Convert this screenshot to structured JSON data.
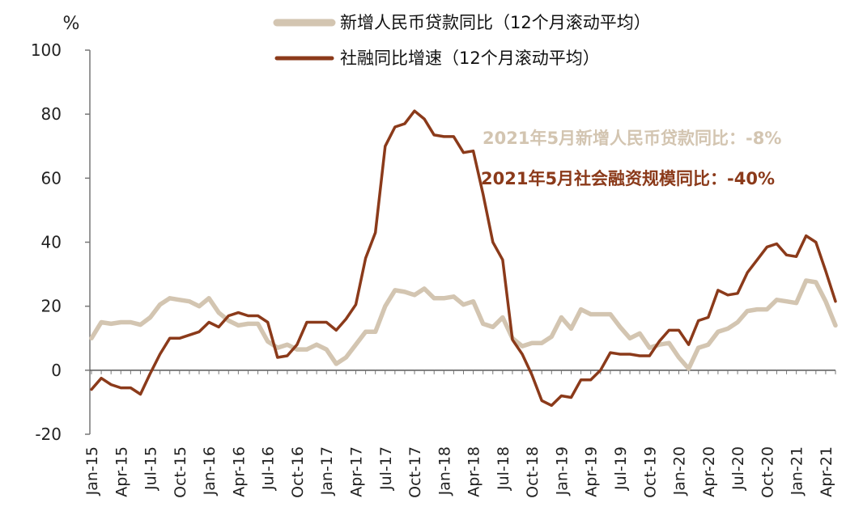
{
  "chart_data": {
    "type": "line",
    "unit_label": "%",
    "ylim": [
      -20,
      100
    ],
    "yticks": [
      "100",
      "80",
      "60",
      "40",
      "20",
      "0",
      "-20"
    ],
    "xtick_labels": [
      "Jan-15",
      "Apr-15",
      "Jul-15",
      "Oct-15",
      "Jan-16",
      "Apr-16",
      "Jul-16",
      "Oct-16",
      "Jan-17",
      "Apr-17",
      "Jul-17",
      "Oct-17",
      "Jan-18",
      "Apr-18",
      "Jul-18",
      "Oct-18",
      "Jan-19",
      "Apr-19",
      "Jul-19",
      "Oct-19",
      "Jan-20",
      "Apr-20",
      "Jul-20",
      "Oct-20",
      "Jan-21",
      "Apr-21"
    ],
    "x": [
      "Jan-15",
      "Feb-15",
      "Mar-15",
      "Apr-15",
      "May-15",
      "Jun-15",
      "Jul-15",
      "Aug-15",
      "Sep-15",
      "Oct-15",
      "Nov-15",
      "Dec-15",
      "Jan-16",
      "Feb-16",
      "Mar-16",
      "Apr-16",
      "May-16",
      "Jun-16",
      "Jul-16",
      "Aug-16",
      "Sep-16",
      "Oct-16",
      "Nov-16",
      "Dec-16",
      "Jan-17",
      "Feb-17",
      "Mar-17",
      "Apr-17",
      "May-17",
      "Jun-17",
      "Jul-17",
      "Aug-17",
      "Sep-17",
      "Oct-17",
      "Nov-17",
      "Dec-17",
      "Jan-18",
      "Feb-18",
      "Mar-18",
      "Apr-18",
      "May-18",
      "Jun-18",
      "Jul-18",
      "Aug-18",
      "Sep-18",
      "Oct-18",
      "Nov-18",
      "Dec-18",
      "Jan-19",
      "Feb-19",
      "Mar-19",
      "Apr-19",
      "May-19",
      "Jun-19",
      "Jul-19",
      "Aug-19",
      "Sep-19",
      "Oct-19",
      "Nov-19",
      "Dec-19",
      "Jan-20",
      "Feb-20",
      "Mar-20",
      "Apr-20",
      "May-20",
      "Jun-20",
      "Jul-20",
      "Aug-20",
      "Sep-20",
      "Oct-20",
      "Nov-20",
      "Dec-20",
      "Jan-21",
      "Feb-21",
      "Mar-21",
      "Apr-21",
      "May-21"
    ],
    "series": [
      {
        "name": "新增人民币贷款同比（12个月滚动平均）",
        "color": "#d3c5b1",
        "values": [
          10,
          15,
          14.5,
          15,
          15,
          14.2,
          16.5,
          20.5,
          22.5,
          22,
          21.5,
          20,
          22.5,
          18,
          15.5,
          14,
          14.5,
          14.5,
          9,
          7,
          8,
          6.5,
          6.5,
          8,
          6.5,
          2,
          4,
          8,
          12,
          12,
          20,
          25,
          24.5,
          23.5,
          25.5,
          22.5,
          22.5,
          23,
          20.5,
          21.5,
          14.5,
          13.5,
          16.5,
          10,
          7.5,
          8.5,
          8.5,
          10.5,
          16.5,
          13,
          19,
          17.5,
          17.5,
          17.5,
          13.5,
          10,
          11.5,
          7,
          8,
          8.5,
          4,
          0.5,
          7,
          8,
          12,
          13,
          15,
          18.5,
          19,
          19,
          22,
          21.5,
          21,
          28,
          27.5,
          21.5,
          14
        ]
      },
      {
        "name": "社融同比增速（12个月滚动平均）",
        "color": "#8b3a1a",
        "values": [
          -6,
          -2.5,
          -4.5,
          -5.5,
          -5.5,
          -7.5,
          -1,
          5,
          10,
          10,
          11,
          12,
          15,
          13.5,
          17,
          18,
          17,
          17,
          15,
          4,
          4.5,
          8,
          15,
          15,
          15,
          12.5,
          16,
          20.5,
          35,
          43,
          70,
          76,
          77,
          81,
          78.5,
          73.5,
          73,
          73,
          68,
          68.5,
          55,
          40,
          34.5,
          9.5,
          5,
          -1.5,
          -9.5,
          -11,
          -8,
          -8.5,
          -3,
          -3,
          0,
          5.5,
          5,
          5,
          4.5,
          4.5,
          9,
          12.5,
          12.5,
          8,
          15.5,
          16.5,
          25,
          23.5,
          24,
          30.5,
          34.5,
          38.5,
          39.5,
          36,
          35.5,
          42,
          40,
          31,
          21.5
        ]
      }
    ],
    "legend_position": "top",
    "annotations": [
      {
        "text": "2021年5月新增人民币贷款同比：-8%",
        "color": "#d3c5b1"
      },
      {
        "text": "2021年5月社会融资规模同比：-40%",
        "color": "#8b3a1a"
      }
    ],
    "zero_line_color": "#555555",
    "negative_tick_color": "#e02020",
    "grid": false
  }
}
